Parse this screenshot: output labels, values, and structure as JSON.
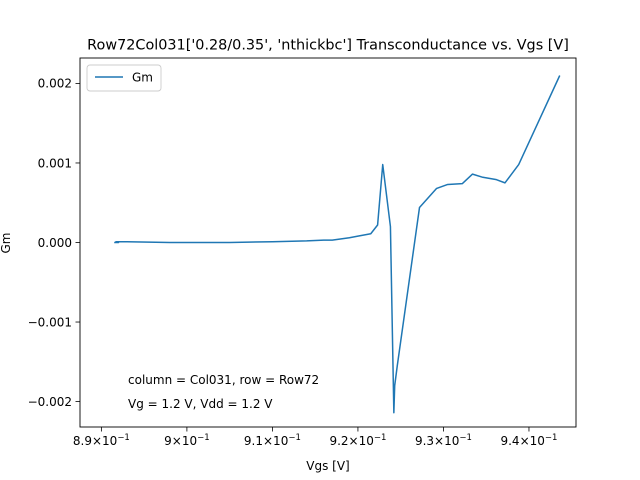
{
  "chart_data": {
    "type": "line",
    "title": "Row72Col031['0.28/0.35', 'nthickbc'] Transconductance vs. Vgs [V]",
    "xlabel": "Vgs [V]",
    "ylabel": "Gm",
    "xlim": [
      0.8875,
      0.9455
    ],
    "ylim": [
      -0.00232,
      0.00232
    ],
    "x_ticks": [
      {
        "value": 0.89,
        "base": "8.9",
        "exp": "-1"
      },
      {
        "value": 0.9,
        "base": "9",
        "exp": "-1"
      },
      {
        "value": 0.91,
        "base": "9.1",
        "exp": "-1"
      },
      {
        "value": 0.92,
        "base": "9.2",
        "exp": "-1"
      },
      {
        "value": 0.93,
        "base": "9.3",
        "exp": "-1"
      },
      {
        "value": 0.94,
        "base": "9.4",
        "exp": "-1"
      }
    ],
    "y_ticks": [
      {
        "value": -0.002,
        "label": "−0.002"
      },
      {
        "value": -0.001,
        "label": "−0.001"
      },
      {
        "value": 0.0,
        "label": "0.000"
      },
      {
        "value": 0.001,
        "label": "0.001"
      },
      {
        "value": 0.002,
        "label": "0.002"
      }
    ],
    "legend_position": "top-left",
    "grid": false,
    "series": [
      {
        "name": "Gm",
        "color": "#1f77b4",
        "x": [
          0.8915,
          0.892,
          0.8917,
          0.893,
          0.898,
          0.905,
          0.91,
          0.914,
          0.916,
          0.917,
          0.919,
          0.92,
          0.9215,
          0.9223,
          0.9229,
          0.9238,
          0.9242,
          0.9243,
          0.9246,
          0.9272,
          0.9292,
          0.9305,
          0.9322,
          0.9334,
          0.9346,
          0.9362,
          0.9372,
          0.9388,
          0.9436
        ],
        "y": [
          0.0,
          0.0,
          1e-05,
          1e-05,
          0.0,
          0.0,
          1e-05,
          2e-05,
          3e-05,
          3e-05,
          6e-05,
          8e-05,
          0.00011,
          0.00022,
          0.00098,
          0.0002,
          -0.00214,
          -0.0018,
          -0.00155,
          0.00044,
          0.00068,
          0.00073,
          0.00074,
          0.00086,
          0.00082,
          0.00079,
          0.00075,
          0.00098,
          0.0021
        ]
      }
    ],
    "annotations": [
      "column = Col031, row = Row72",
      "Vg = 1.2 V, Vdd = 1.2 V"
    ]
  }
}
